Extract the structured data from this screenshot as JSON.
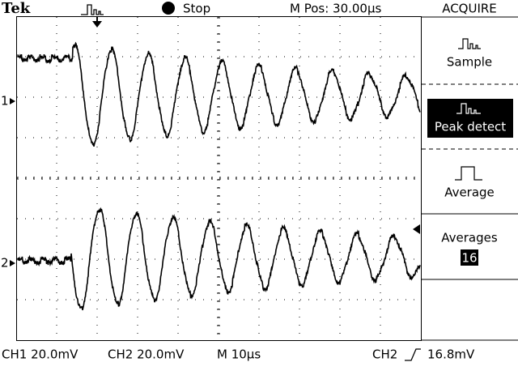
{
  "header": {
    "brand": "Tek",
    "status": "Stop",
    "position": "M Pos: 30.00µs"
  },
  "menu": {
    "title": "ACQUIRE",
    "items": [
      {
        "label": "Sample"
      },
      {
        "label": "Peak detect"
      },
      {
        "label": "Average"
      },
      {
        "label": "Averages",
        "value": "16"
      }
    ]
  },
  "channels": {
    "ch1_marker": "1",
    "ch2_marker": "2"
  },
  "footer": {
    "ch1": "CH1 20.0mV",
    "ch2": "CH2 20.0mV",
    "timebase": "M 10µs",
    "trigger_source": "CH2",
    "trigger_level": "16.8mV"
  }
}
